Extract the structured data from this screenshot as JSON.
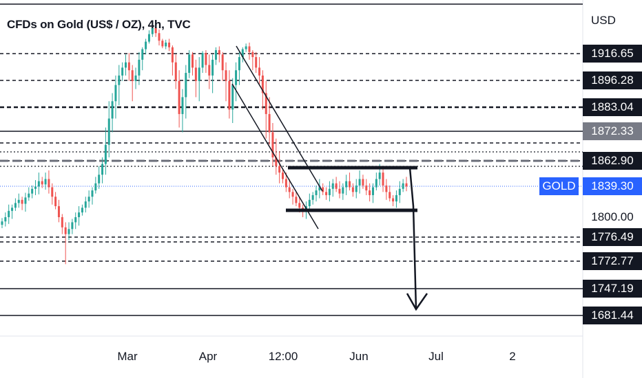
{
  "chart_data": {
    "type": "candlestick",
    "title": "CFDs on Gold (US$ / OZ), 4h, TVC",
    "currency": "USD",
    "symbol": "GOLD",
    "current_price": "1839.30",
    "price_levels": [
      {
        "label": "1916.65",
        "value": 1916.65,
        "line": "dashed"
      },
      {
        "label": "1896.28",
        "value": 1896.28,
        "line": "dashed"
      },
      {
        "label": "1883.04",
        "value": 1883.04,
        "line": "dashed-bold"
      },
      {
        "label": "1872.33",
        "value": 1872.33,
        "line": "solid",
        "highlight": "gray"
      },
      {
        "label": "1862.90",
        "value": 1862.9,
        "line": "dashed"
      },
      {
        "label": "1800.00",
        "value": 1800.0,
        "line": "none",
        "highlight": "plain"
      },
      {
        "label": "1776.49",
        "value": 1776.49,
        "line": "dashed"
      },
      {
        "label": "1772.77",
        "value": 1772.77,
        "line": "dashed"
      },
      {
        "label": "1747.19",
        "value": 1747.19,
        "line": "solid"
      },
      {
        "label": "1681.44",
        "value": 1681.44,
        "line": "solid"
      }
    ],
    "x_ticks": [
      "Mar",
      "Apr",
      "12:00",
      "Jun",
      "Jul",
      "2"
    ],
    "colors": {
      "up": "#26a69a",
      "down": "#ef5350",
      "level_line": "#131722",
      "current_line": "#2962ff",
      "gray_dashed": "#6a6d78"
    },
    "approx_candle_closes": [
      1795,
      1800,
      1808,
      1812,
      1818,
      1822,
      1817,
      1825,
      1830,
      1836,
      1839,
      1844,
      1841,
      1846,
      1838,
      1826,
      1814,
      1800,
      1788,
      1780,
      1786,
      1794,
      1800,
      1806,
      1812,
      1820,
      1826,
      1834,
      1842,
      1850,
      1860,
      1868,
      1878,
      1886,
      1894,
      1900,
      1906,
      1910,
      1904,
      1896,
      1900,
      1912,
      1926,
      1942,
      1958,
      1972,
      1960,
      1944,
      1932,
      1940,
      1930,
      1910,
      1896,
      1880,
      1888,
      1902,
      1916,
      1906,
      1896,
      1906,
      1918,
      1908,
      1900,
      1912,
      1924,
      1916,
      1904,
      1896,
      1882,
      1894,
      1904,
      1914,
      1926,
      1932,
      1920,
      1914,
      1906,
      1900,
      1890,
      1880,
      1872,
      1864,
      1858,
      1852,
      1846,
      1838,
      1832,
      1826,
      1818,
      1812,
      1808,
      1814,
      1822,
      1828,
      1834,
      1838,
      1832,
      1828,
      1836,
      1842,
      1836,
      1830,
      1838,
      1844,
      1838,
      1832,
      1840,
      1846,
      1840,
      1834,
      1828,
      1838,
      1846,
      1852,
      1840,
      1832,
      1824,
      1820,
      1828,
      1836,
      1842,
      1839
    ]
  }
}
